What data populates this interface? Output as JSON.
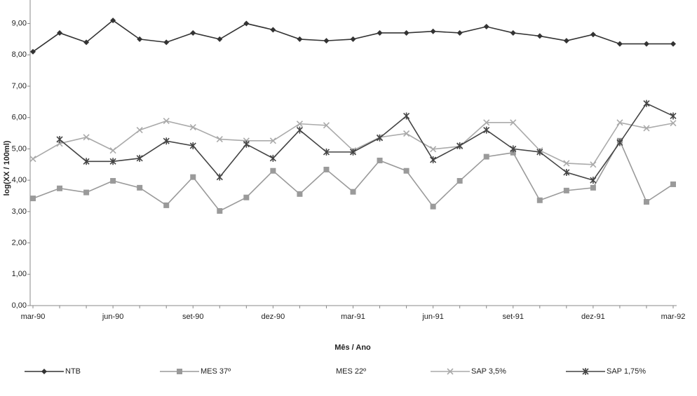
{
  "chart_data": {
    "type": "line",
    "xlabel": "Mês / Ano",
    "ylabel": "log(XX / 100ml)",
    "categories": [
      "mar-90",
      null,
      null,
      "jun-90",
      null,
      null,
      "set-90",
      null,
      null,
      "dez-90",
      null,
      null,
      "mar-91",
      null,
      null,
      "jun-91",
      null,
      null,
      "set-91",
      null,
      null,
      "dez-91",
      null,
      null,
      "mar-92"
    ],
    "ylim": [
      0,
      9.75
    ],
    "yticks": [
      {
        "value": 0,
        "label": "0,00"
      },
      {
        "value": 1,
        "label": "1,00"
      },
      {
        "value": 2,
        "label": "2,00"
      },
      {
        "value": 3,
        "label": "3,00"
      },
      {
        "value": 4,
        "label": "4,00"
      },
      {
        "value": 5,
        "label": "5,00"
      },
      {
        "value": 6,
        "label": "6,00"
      },
      {
        "value": 7,
        "label": "7,00"
      },
      {
        "value": 8,
        "label": "8,00"
      },
      {
        "value": 9,
        "label": "9,00"
      }
    ],
    "series": [
      {
        "name": "NTB",
        "color": "#333333",
        "marker": "diamond",
        "values": [
          8.1,
          8.7,
          8.4,
          9.1,
          8.5,
          8.4,
          8.7,
          8.5,
          9.0,
          8.8,
          8.5,
          8.45,
          8.5,
          8.7,
          8.7,
          8.75,
          8.7,
          8.9,
          8.7,
          8.6,
          8.45,
          8.65,
          8.35,
          8.35,
          8.35
        ]
      },
      {
        "name": "MES 37º",
        "color": "#9a9a9a",
        "marker": "square",
        "values": [
          3.42,
          3.74,
          3.61,
          3.98,
          3.76,
          3.2,
          4.1,
          3.02,
          3.45,
          4.3,
          3.56,
          4.34,
          3.63,
          4.63,
          4.3,
          3.16,
          3.98,
          4.75,
          4.88,
          3.36,
          3.67,
          3.76,
          5.26,
          3.31,
          3.87
        ]
      },
      {
        "name": "MES 22º",
        "color": "#ffffff",
        "marker": "triangle",
        "values": [
          null,
          null,
          null,
          null,
          null,
          null,
          null,
          null,
          null,
          null,
          null,
          null,
          null,
          null,
          null,
          null,
          null,
          null,
          null,
          null,
          null,
          null,
          null,
          null,
          null
        ]
      },
      {
        "name": "SAP 3,5%",
        "color": "#aaaaaa",
        "marker": "x",
        "values": [
          4.68,
          5.17,
          5.37,
          4.95,
          5.6,
          5.89,
          5.69,
          5.31,
          5.26,
          5.26,
          5.8,
          5.75,
          4.95,
          5.37,
          5.49,
          4.99,
          5.08,
          5.84,
          5.84,
          4.95,
          4.54,
          4.5,
          5.84,
          5.66,
          5.82
        ]
      },
      {
        "name": "SAP 1,75%",
        "color": "#444444",
        "marker": "star",
        "values": [
          null,
          5.3,
          4.6,
          4.6,
          4.7,
          5.25,
          5.1,
          4.1,
          5.15,
          4.7,
          5.6,
          4.9,
          4.9,
          5.35,
          6.05,
          4.65,
          5.1,
          5.6,
          5.0,
          4.9,
          4.25,
          4.0,
          5.2,
          6.45,
          6.05
        ]
      }
    ]
  }
}
